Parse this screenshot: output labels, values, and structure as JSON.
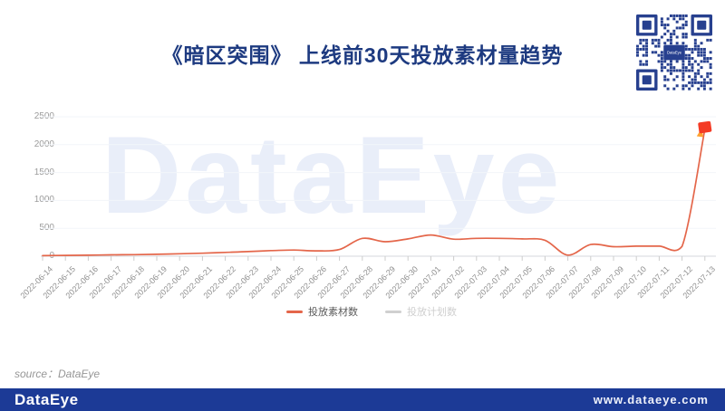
{
  "header": {
    "title": "《暗区突围》 上线前30天投放素材量趋势",
    "qr_label": "DataEye"
  },
  "watermark": "DataEye",
  "colors": {
    "title_blue": "#1d3a80",
    "line_orange": "#e4664a",
    "marker_red": "#f43b25",
    "marker_accent": "#ffa12e",
    "footer_blue": "#1c3a96",
    "qr_blue": "#27408f",
    "grid": "#f2f5fa",
    "axis": "#d4d7dc",
    "tick": "#cccccc"
  },
  "chart_data": {
    "type": "line",
    "title": "《暗区突围》 上线前30天投放素材量趋势",
    "x": [
      "2022-06-14",
      "2022-06-15",
      "2022-06-16",
      "2022-06-17",
      "2022-06-18",
      "2022-06-19",
      "2022-06-20",
      "2022-06-21",
      "2022-06-22",
      "2022-06-23",
      "2022-06-24",
      "2022-06-25",
      "2022-06-26",
      "2022-06-27",
      "2022-06-28",
      "2022-06-29",
      "2022-06-30",
      "2022-07-01",
      "2022-07-02",
      "2022-07-03",
      "2022-07-04",
      "2022-07-05",
      "2022-07-06",
      "2022-07-07",
      "2022-07-08",
      "2022-07-09",
      "2022-07-10",
      "2022-07-11",
      "2022-07-12",
      "2022-07-13"
    ],
    "series": [
      {
        "name": "投放素材数",
        "color": "#e4664a",
        "visible": true,
        "values": [
          10,
          14,
          18,
          24,
          28,
          34,
          44,
          54,
          68,
          82,
          100,
          110,
          95,
          120,
          320,
          260,
          310,
          380,
          305,
          320,
          320,
          310,
          285,
          20,
          210,
          170,
          180,
          180,
          175,
          2280
        ]
      },
      {
        "name": "投放计划数",
        "color": "#d0d0d0",
        "visible": false,
        "values": []
      }
    ],
    "ylabel": "",
    "xlabel": "",
    "ylim": [
      0,
      2500
    ],
    "yticks": [
      0,
      500,
      1000,
      1500,
      2000,
      2500
    ],
    "grid": true,
    "legend_position": "bottom",
    "peak_annotation": {
      "x": "2022-07-13",
      "marker": "red-flag"
    }
  },
  "footer": {
    "source_label": "source：DataEye",
    "logo": "DataEye",
    "website": "www.dataeye.com"
  }
}
